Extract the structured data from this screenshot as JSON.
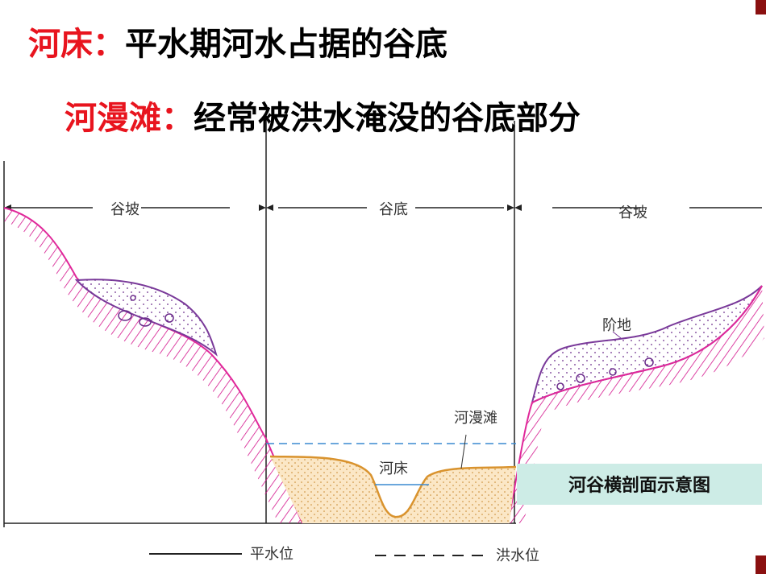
{
  "definitions": [
    {
      "term": "河床：",
      "text": "平水期河水占据的谷底"
    },
    {
      "term": "河漫滩：",
      "text": "经常被洪水淹没的谷底部分"
    }
  ],
  "diagram": {
    "sections": [
      "谷坡",
      "谷底",
      "谷坡"
    ],
    "labels": {
      "terrace": "阶地",
      "floodplain": "河漫滩",
      "channel": "河床"
    },
    "caption": "河谷横剖面示意图",
    "legend": [
      "平水位",
      "洪水位"
    ]
  }
}
